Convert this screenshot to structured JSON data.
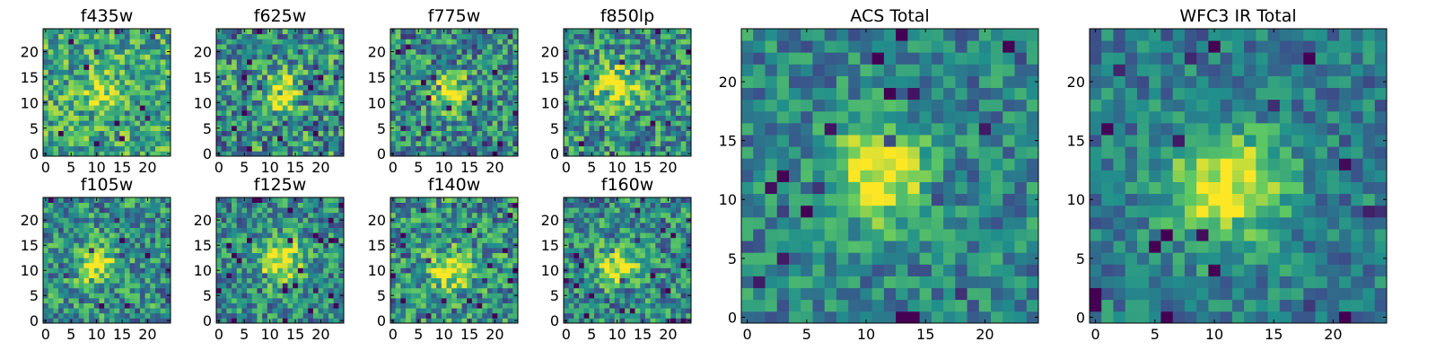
{
  "figure": {
    "colormap": "viridis",
    "colormap_stops": [
      "#440154",
      "#3b528b",
      "#21908c",
      "#5dc863",
      "#fde725"
    ],
    "axis_color": "#000000",
    "background": "#ffffff"
  },
  "chart_data": [
    {
      "type": "heatmap",
      "title": "f435w",
      "shape": [
        25,
        25
      ],
      "xlim": [
        0,
        24
      ],
      "ylim": [
        0,
        24
      ],
      "xticks": [
        "0",
        "5",
        "10",
        "15",
        "20"
      ],
      "yticks": [
        "0",
        "5",
        "10",
        "15",
        "20"
      ],
      "source_center": [
        11,
        12
      ],
      "source_amplitude": 0.28,
      "source_width": 2.6,
      "background_level": 0.6,
      "noise_level": 0.3,
      "seed": 11
    },
    {
      "type": "heatmap",
      "title": "f625w",
      "shape": [
        25,
        25
      ],
      "xlim": [
        0,
        24
      ],
      "ylim": [
        0,
        24
      ],
      "xticks": [
        "0",
        "5",
        "10",
        "15",
        "20"
      ],
      "yticks": [
        "0",
        "5",
        "10",
        "15",
        "20"
      ],
      "source_center": [
        12,
        12
      ],
      "source_amplitude": 0.5,
      "source_width": 2.4,
      "background_level": 0.5,
      "noise_level": 0.35,
      "seed": 23
    },
    {
      "type": "heatmap",
      "title": "f775w",
      "shape": [
        25,
        25
      ],
      "xlim": [
        0,
        24
      ],
      "ylim": [
        0,
        24
      ],
      "xticks": [
        "0",
        "5",
        "10",
        "15",
        "20"
      ],
      "yticks": [
        "0",
        "5",
        "10",
        "15",
        "20"
      ],
      "source_center": [
        11,
        12
      ],
      "source_amplitude": 0.55,
      "source_width": 2.5,
      "background_level": 0.48,
      "noise_level": 0.32,
      "seed": 37
    },
    {
      "type": "heatmap",
      "title": "f850lp",
      "shape": [
        25,
        25
      ],
      "xlim": [
        0,
        24
      ],
      "ylim": [
        0,
        24
      ],
      "xticks": [
        "0",
        "5",
        "10",
        "15",
        "20"
      ],
      "yticks": [
        "0",
        "5",
        "10",
        "15",
        "20"
      ],
      "source_center": [
        10,
        13
      ],
      "source_amplitude": 0.5,
      "source_width": 3.0,
      "background_level": 0.5,
      "noise_level": 0.32,
      "seed": 41
    },
    {
      "type": "heatmap",
      "title": "f105w",
      "shape": [
        25,
        25
      ],
      "xlim": [
        0,
        24
      ],
      "ylim": [
        0,
        24
      ],
      "xticks": [
        "0",
        "5",
        "10",
        "15",
        "20"
      ],
      "yticks": [
        "0",
        "5",
        "10",
        "15",
        "20"
      ],
      "source_center": [
        10,
        11
      ],
      "source_amplitude": 0.5,
      "source_width": 2.6,
      "background_level": 0.5,
      "noise_level": 0.3,
      "seed": 53
    },
    {
      "type": "heatmap",
      "title": "f125w",
      "shape": [
        25,
        25
      ],
      "xlim": [
        0,
        24
      ],
      "ylim": [
        0,
        24
      ],
      "xticks": [
        "0",
        "5",
        "10",
        "15",
        "20"
      ],
      "yticks": [
        "0",
        "5",
        "10",
        "15",
        "20"
      ],
      "source_center": [
        12,
        12
      ],
      "source_amplitude": 0.55,
      "source_width": 3.0,
      "background_level": 0.48,
      "noise_level": 0.28,
      "seed": 67
    },
    {
      "type": "heatmap",
      "title": "f140w",
      "shape": [
        25,
        25
      ],
      "xlim": [
        0,
        24
      ],
      "ylim": [
        0,
        24
      ],
      "xticks": [
        "0",
        "5",
        "10",
        "15",
        "20"
      ],
      "yticks": [
        "0",
        "5",
        "10",
        "15",
        "20"
      ],
      "source_center": [
        11,
        10
      ],
      "source_amplitude": 0.45,
      "source_width": 2.8,
      "background_level": 0.5,
      "noise_level": 0.32,
      "seed": 71
    },
    {
      "type": "heatmap",
      "title": "f160w",
      "shape": [
        25,
        25
      ],
      "xlim": [
        0,
        24
      ],
      "ylim": [
        0,
        24
      ],
      "xticks": [
        "0",
        "5",
        "10",
        "15",
        "20"
      ],
      "yticks": [
        "0",
        "5",
        "10",
        "15",
        "20"
      ],
      "source_center": [
        10,
        11
      ],
      "source_amplitude": 0.55,
      "source_width": 2.6,
      "background_level": 0.48,
      "noise_level": 0.3,
      "seed": 83
    },
    {
      "type": "heatmap",
      "title": "ACS Total",
      "shape": [
        25,
        25
      ],
      "xlim": [
        0,
        24
      ],
      "ylim": [
        0,
        24
      ],
      "xticks": [
        "0",
        "5",
        "10",
        "15",
        "20"
      ],
      "yticks": [
        "0",
        "5",
        "10",
        "15",
        "20"
      ],
      "source_center": [
        11,
        12
      ],
      "source_amplitude": 0.6,
      "source_width": 2.8,
      "background_level": 0.45,
      "noise_level": 0.22,
      "seed": 97
    },
    {
      "type": "heatmap",
      "title": "WFC3 IR Total",
      "shape": [
        25,
        25
      ],
      "xlim": [
        0,
        24
      ],
      "ylim": [
        0,
        24
      ],
      "xticks": [
        "0",
        "5",
        "10",
        "15",
        "20"
      ],
      "yticks": [
        "0",
        "5",
        "10",
        "15",
        "20"
      ],
      "source_center": [
        11,
        11
      ],
      "source_amplitude": 0.6,
      "source_width": 3.4,
      "background_level": 0.42,
      "noise_level": 0.2,
      "seed": 101
    }
  ]
}
